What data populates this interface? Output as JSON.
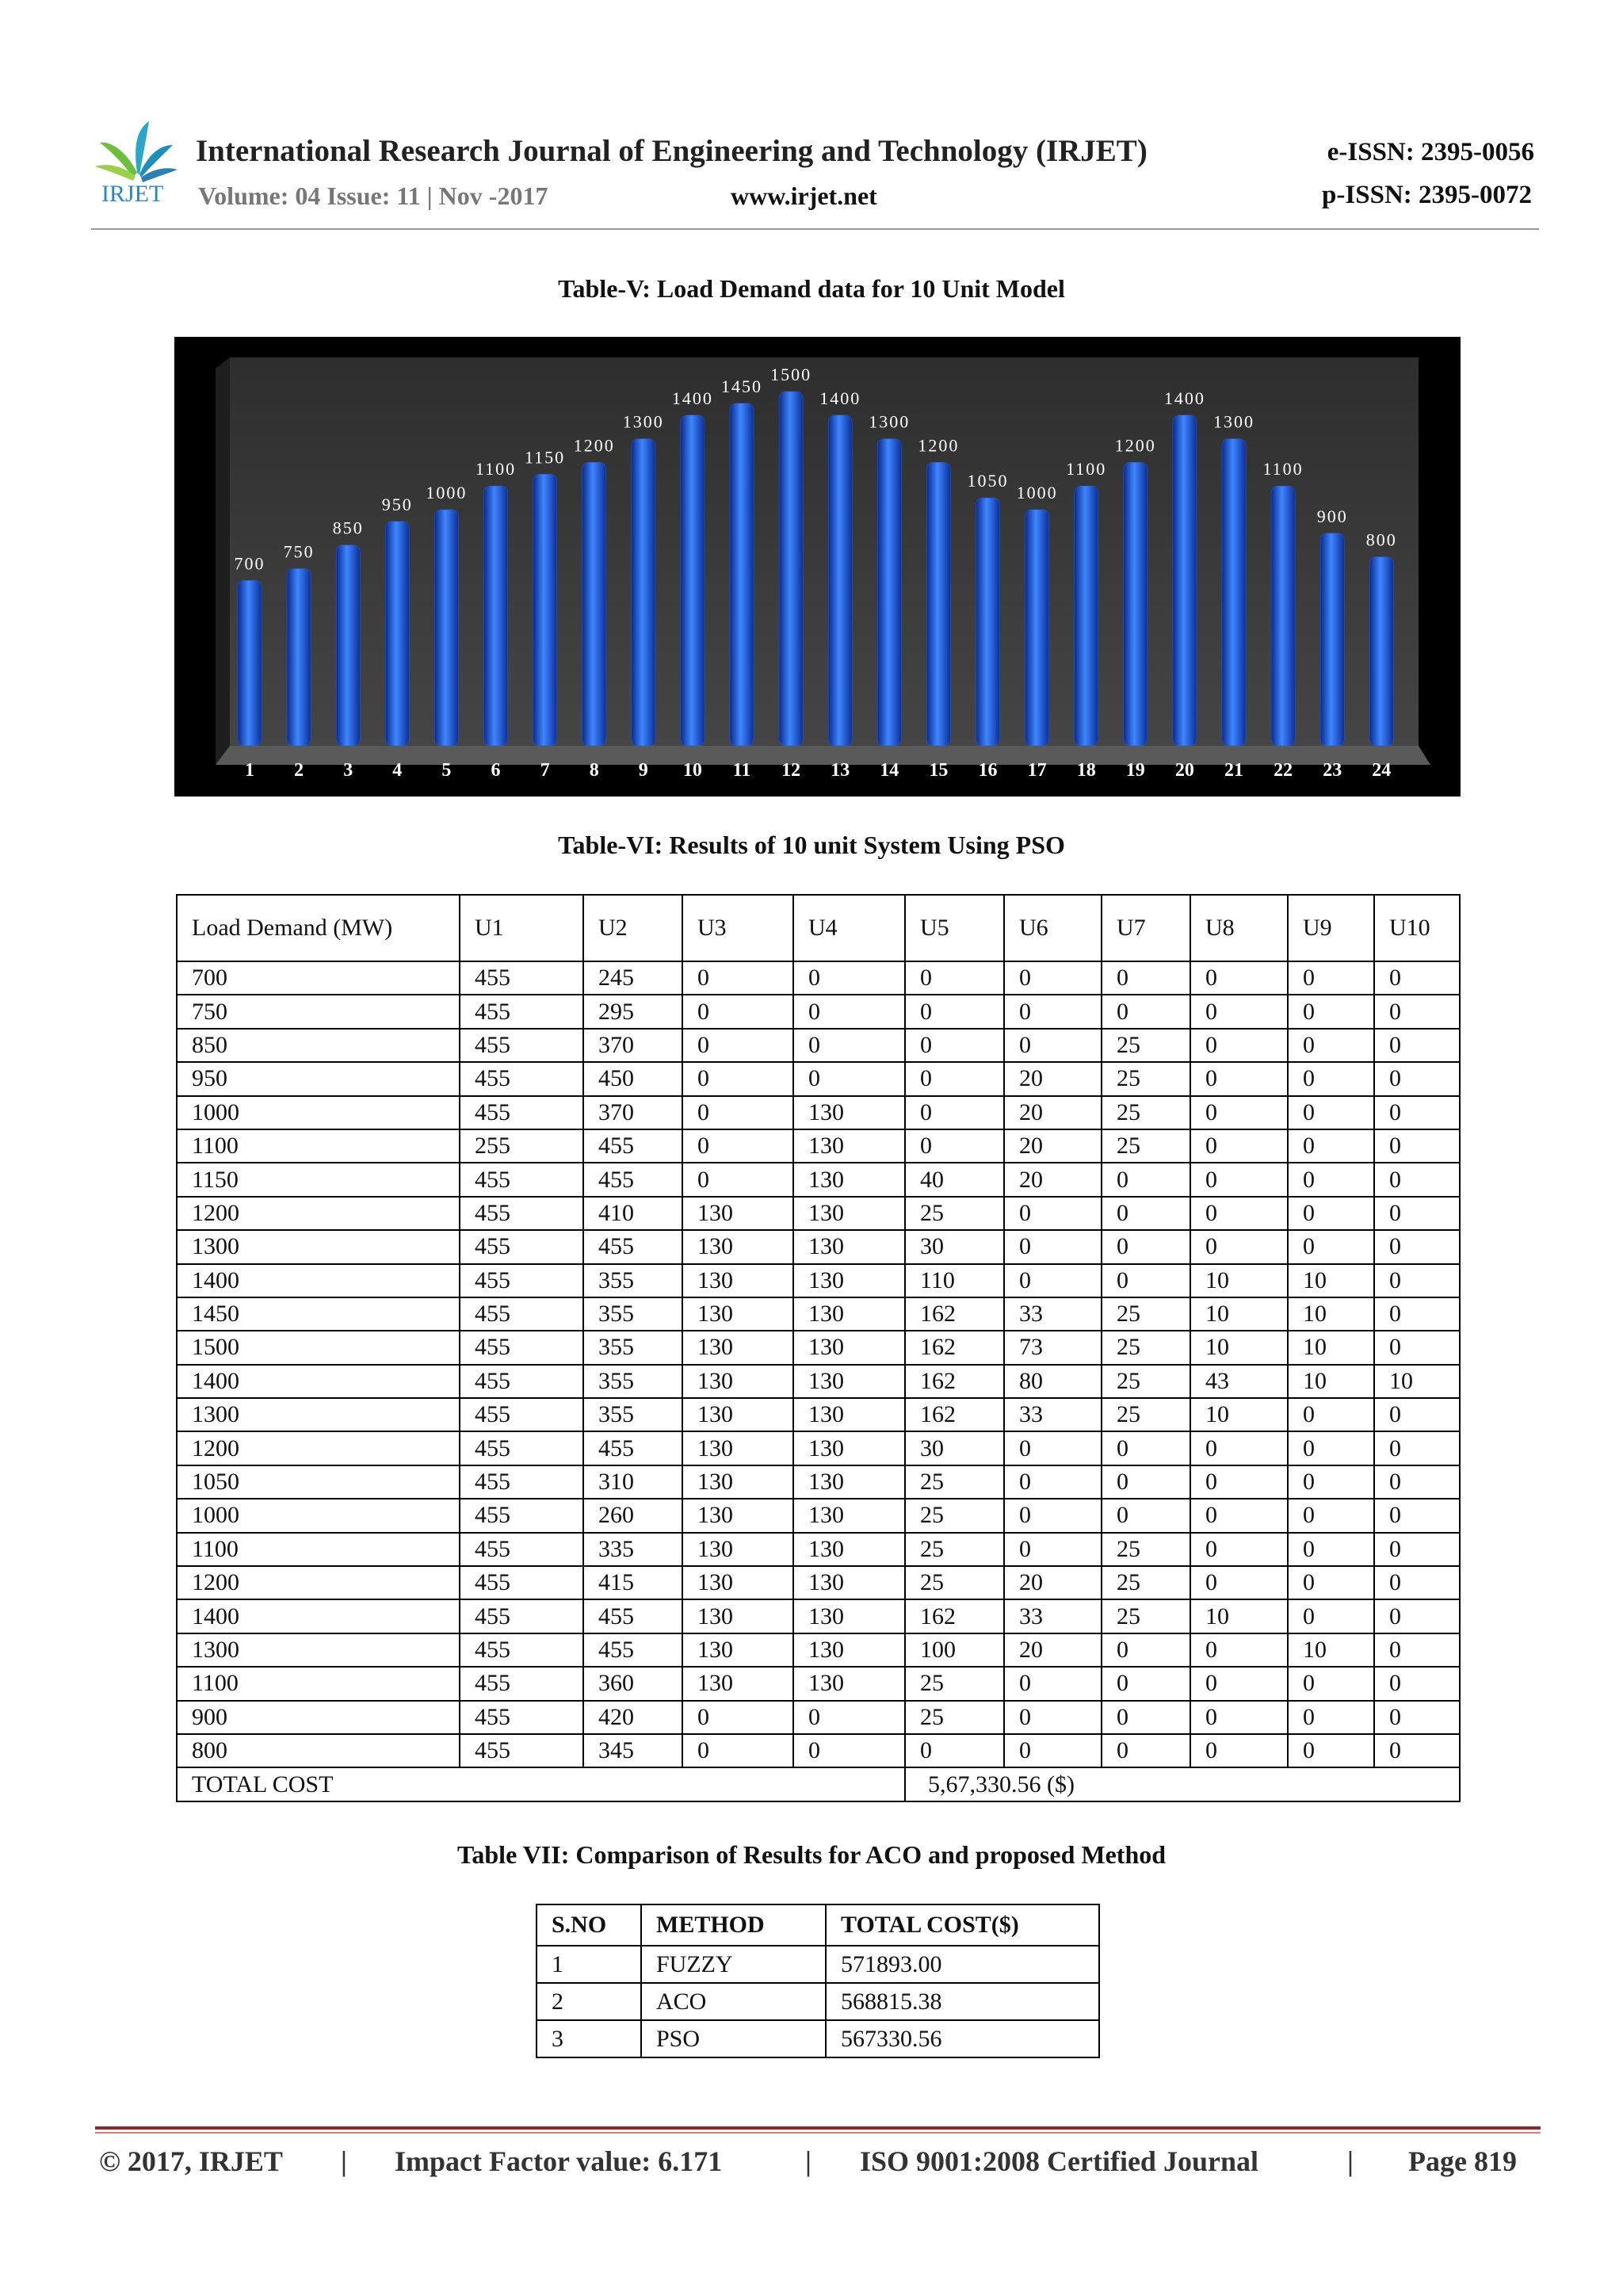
{
  "header": {
    "logo": "IRJET",
    "journal": "International Research Journal of Engineering and Technology (IRJET)",
    "eissn": "e-ISSN: 2395-0056",
    "volume": "Volume: 04 Issue: 11 | Nov -2017",
    "website": "www.irjet.net",
    "pissn": "p-ISSN: 2395-0072"
  },
  "chart_data": {
    "type": "bar",
    "title": "Table-V: Load Demand data for 10 Unit Model",
    "color": "#1f5fe0",
    "categories": [
      "1",
      "2",
      "3",
      "4",
      "5",
      "6",
      "7",
      "8",
      "9",
      "10",
      "11",
      "12",
      "13",
      "14",
      "15",
      "16",
      "17",
      "18",
      "19",
      "20",
      "21",
      "22",
      "23",
      "24"
    ],
    "values": [
      700,
      750,
      850,
      950,
      1000,
      1100,
      1150,
      1200,
      1300,
      1400,
      1450,
      1500,
      1400,
      1300,
      1200,
      1050,
      1000,
      1100,
      1200,
      1400,
      1300,
      1100,
      900,
      800
    ]
  },
  "table6": {
    "caption": "Table-VI: Results of 10 unit System Using PSO",
    "header": [
      "Load Demand (MW)",
      "U1",
      "U2",
      "U3",
      "U4",
      "U5",
      "U6",
      "U7",
      "U8",
      "U9",
      "U10"
    ],
    "rows": [
      [
        700,
        455,
        245,
        0,
        0,
        0,
        0,
        0,
        0,
        0,
        0
      ],
      [
        750,
        455,
        295,
        0,
        0,
        0,
        0,
        0,
        0,
        0,
        0
      ],
      [
        850,
        455,
        370,
        0,
        0,
        0,
        0,
        25,
        0,
        0,
        0
      ],
      [
        950,
        455,
        450,
        0,
        0,
        0,
        20,
        25,
        0,
        0,
        0
      ],
      [
        1000,
        455,
        370,
        0,
        130,
        0,
        20,
        25,
        0,
        0,
        0
      ],
      [
        1100,
        255,
        455,
        0,
        130,
        0,
        20,
        25,
        0,
        0,
        0
      ],
      [
        1150,
        455,
        455,
        0,
        130,
        40,
        20,
        0,
        0,
        0,
        0
      ],
      [
        1200,
        455,
        410,
        130,
        130,
        25,
        0,
        0,
        0,
        0,
        0
      ],
      [
        1300,
        455,
        455,
        130,
        130,
        30,
        0,
        0,
        0,
        0,
        0
      ],
      [
        1400,
        455,
        355,
        130,
        130,
        110,
        0,
        0,
        10,
        10,
        0
      ],
      [
        1450,
        455,
        355,
        130,
        130,
        162,
        33,
        25,
        10,
        10,
        0
      ],
      [
        1500,
        455,
        355,
        130,
        130,
        162,
        73,
        25,
        10,
        10,
        0
      ],
      [
        1400,
        455,
        355,
        130,
        130,
        162,
        80,
        25,
        43,
        10,
        10
      ],
      [
        1300,
        455,
        355,
        130,
        130,
        162,
        33,
        25,
        10,
        0,
        0
      ],
      [
        1200,
        455,
        455,
        130,
        130,
        30,
        0,
        0,
        0,
        0,
        0
      ],
      [
        1050,
        455,
        310,
        130,
        130,
        25,
        0,
        0,
        0,
        0,
        0
      ],
      [
        1000,
        455,
        260,
        130,
        130,
        25,
        0,
        0,
        0,
        0,
        0
      ],
      [
        1100,
        455,
        335,
        130,
        130,
        25,
        0,
        25,
        0,
        0,
        0
      ],
      [
        1200,
        455,
        415,
        130,
        130,
        25,
        20,
        25,
        0,
        0,
        0
      ],
      [
        1400,
        455,
        455,
        130,
        130,
        162,
        33,
        25,
        10,
        0,
        0
      ],
      [
        1300,
        455,
        455,
        130,
        130,
        100,
        20,
        0,
        0,
        10,
        0
      ],
      [
        1100,
        455,
        360,
        130,
        130,
        25,
        0,
        0,
        0,
        0,
        0
      ],
      [
        900,
        455,
        420,
        0,
        0,
        25,
        0,
        0,
        0,
        0,
        0
      ],
      [
        800,
        455,
        345,
        0,
        0,
        0,
        0,
        0,
        0,
        0,
        0
      ]
    ],
    "total": {
      "label": "TOTAL COST",
      "value": "5,67,330.56 ($)"
    }
  },
  "table7": {
    "caption": "Table VII: Comparison of Results for ACO and proposed Method",
    "header": [
      "S.NO",
      "METHOD",
      "TOTAL COST($)"
    ],
    "rows": [
      [
        "1",
        "FUZZY",
        "571893.00"
      ],
      [
        "2",
        "ACO",
        "568815.38"
      ],
      [
        "3",
        "PSO",
        "567330.56"
      ]
    ]
  },
  "footer": [
    "© 2017, IRJET",
    "|",
    "Impact Factor value: 6.171",
    "|",
    "ISO 9001:2008 Certified Journal",
    "|",
    "Page 819"
  ]
}
